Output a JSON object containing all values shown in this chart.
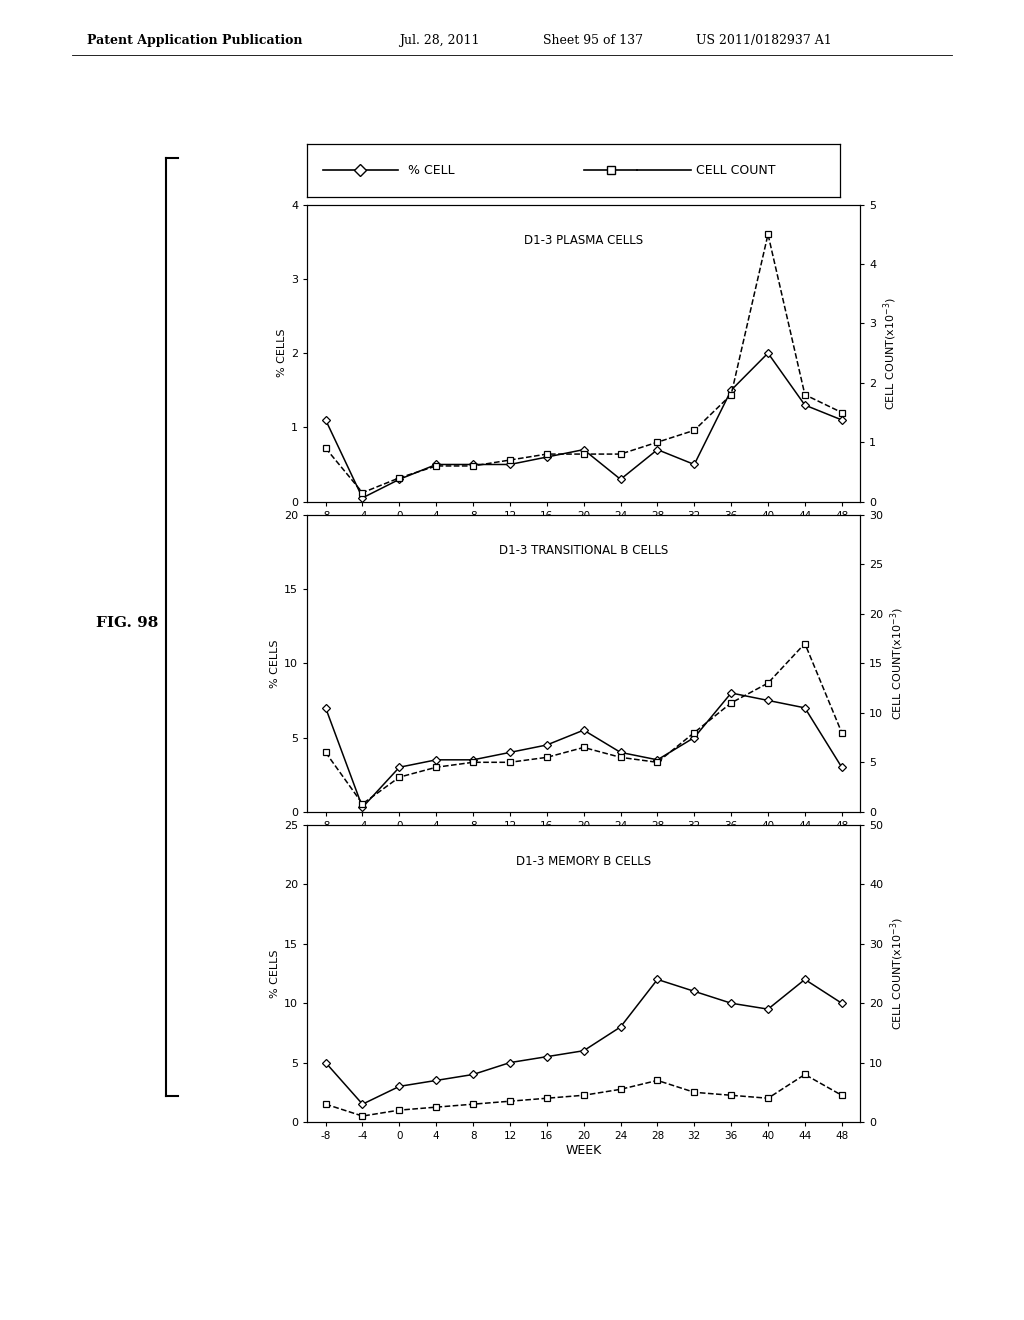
{
  "weeks": [
    -8,
    -4,
    0,
    4,
    8,
    12,
    16,
    20,
    24,
    28,
    32,
    36,
    40,
    44,
    48
  ],
  "chart1": {
    "title": "D1-3 PLASMA CELLS",
    "yleft_max": 4,
    "yright_max": 5,
    "yleft_ticks": [
      0,
      1,
      2,
      3,
      4
    ],
    "yright_ticks": [
      0,
      1,
      2,
      3,
      4,
      5
    ],
    "percent_cell": [
      1.1,
      0.05,
      0.3,
      0.5,
      0.5,
      0.5,
      0.6,
      0.7,
      0.3,
      0.7,
      0.5,
      1.5,
      2.0,
      1.3,
      1.1
    ],
    "cell_count": [
      0.9,
      0.15,
      0.4,
      0.6,
      0.6,
      0.7,
      0.8,
      0.8,
      0.8,
      1.0,
      1.2,
      1.8,
      4.5,
      1.8,
      1.5
    ]
  },
  "chart2": {
    "title": "D1-3 TRANSITIONAL B CELLS",
    "yleft_max": 20,
    "yright_max": 30,
    "yleft_ticks": [
      0,
      5,
      10,
      15,
      20
    ],
    "yright_ticks": [
      0,
      5,
      10,
      15,
      20,
      25,
      30
    ],
    "percent_cell": [
      7.0,
      0.3,
      3.0,
      3.5,
      3.5,
      4.0,
      4.5,
      5.5,
      4.0,
      3.5,
      5.0,
      8.0,
      7.5,
      7.0,
      3.0
    ],
    "cell_count": [
      6.0,
      0.8,
      3.5,
      4.5,
      5.0,
      5.0,
      5.5,
      6.5,
      5.5,
      5.0,
      8.0,
      11.0,
      13.0,
      17.0,
      8.0
    ]
  },
  "chart3": {
    "title": "D1-3 MEMORY B CELLS",
    "yleft_max": 25,
    "yright_max": 50,
    "yleft_ticks": [
      0,
      5,
      10,
      15,
      20,
      25
    ],
    "yright_ticks": [
      0,
      10,
      20,
      30,
      40,
      50
    ],
    "percent_cell": [
      5.0,
      1.5,
      3.0,
      3.5,
      4.0,
      5.0,
      5.5,
      6.0,
      8.0,
      12.0,
      11.0,
      10.0,
      9.5,
      12.0,
      10.0
    ],
    "cell_count": [
      3.0,
      1.0,
      2.0,
      2.5,
      3.0,
      3.5,
      4.0,
      4.5,
      5.5,
      7.0,
      5.0,
      4.5,
      4.0,
      8.0,
      4.5
    ]
  },
  "legend_label_pct": "% CELL",
  "legend_label_cnt": "CELL COUNT",
  "xlabel": "WEEK",
  "ylabel_left": "% CELLS",
  "fig_label": "FIG. 98",
  "header_left": "Patent Application Publication",
  "header_mid": "Jul. 28, 2011",
  "header_mid2": "Sheet 95 of 137",
  "header_right": "US 2011/0182937 A1",
  "bg_color": "#ffffff"
}
